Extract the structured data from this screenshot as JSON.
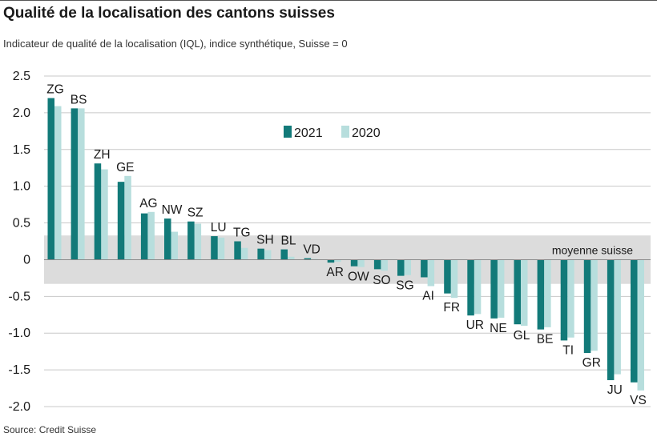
{
  "title": "Qualité de la localisation des cantons suisses",
  "subtitle": "Indicateur de qualité de la localisation (IQL), indice synthétique, Suisse = 0",
  "source": "Source: Credit Suisse",
  "colors": {
    "series2021": "#127a79",
    "series2020": "#b7dedd",
    "band": "#dcdcdc",
    "grid": "#c8c8c8"
  },
  "chart_data": {
    "type": "bar",
    "title": "",
    "xlabel": "",
    "ylabel": "",
    "ylim": [
      -2.0,
      2.5
    ],
    "yticks": [
      2.5,
      2.0,
      1.5,
      1.0,
      0.5,
      0,
      -0.5,
      -1.0,
      -1.5,
      -2.0
    ],
    "ytick_labels": [
      "2.5",
      "2.0",
      "1.5",
      "1.0",
      "0.5",
      "0",
      "-0.5",
      "-1.0",
      "-1.5",
      "-2.0"
    ],
    "grid": true,
    "legend": "top-center",
    "band": {
      "from": -0.33,
      "to": 0.33,
      "label": "moyenne suisse"
    },
    "categories": [
      "ZG",
      "BS",
      "ZH",
      "GE",
      "AG",
      "NW",
      "SZ",
      "LU",
      "TG",
      "SH",
      "BL",
      "VD",
      "AR",
      "OW",
      "SO",
      "SG",
      "AI",
      "FR",
      "UR",
      "NE",
      "GL",
      "BE",
      "TI",
      "GR",
      "JU",
      "VS"
    ],
    "series": [
      {
        "name": "2021",
        "values": [
          2.2,
          2.06,
          1.31,
          1.06,
          0.63,
          0.56,
          0.52,
          0.32,
          0.25,
          0.15,
          0.14,
          0.02,
          -0.04,
          -0.09,
          -0.13,
          -0.22,
          -0.24,
          -0.46,
          -0.76,
          -0.8,
          -0.88,
          -0.95,
          -1.1,
          -1.27,
          -1.64,
          -1.67
        ]
      },
      {
        "name": "2020",
        "values": [
          2.09,
          2.06,
          1.23,
          1.14,
          0.65,
          0.38,
          0.49,
          0.3,
          0.16,
          0.13,
          0.04,
          0.01,
          -0.03,
          -0.1,
          -0.15,
          -0.21,
          -0.36,
          -0.52,
          -0.74,
          -0.79,
          -0.9,
          -0.92,
          -1.06,
          -1.24,
          -1.56,
          -1.78
        ]
      }
    ]
  }
}
